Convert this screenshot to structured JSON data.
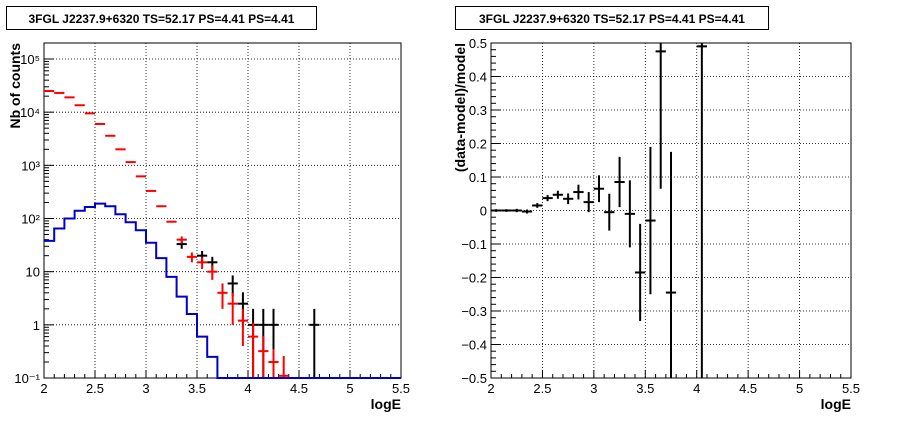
{
  "chart_data": [
    {
      "type": "histogram",
      "title": "3FGL J2237.9+6320 TS=52.17 PS=4.41 PS=4.41",
      "xlabel": "logE",
      "ylabel": "Nb of counts",
      "xlim": [
        2,
        5.5
      ],
      "ylim": [
        0.1,
        200000
      ],
      "yscale": "log",
      "grid": true,
      "xticks": [
        "2",
        "2.5",
        "3",
        "3.5",
        "4",
        "4.5",
        "5",
        "5.5"
      ],
      "yticks": [
        "10⁻¹",
        "1",
        "10",
        "10²",
        "10³",
        "10⁴",
        "10⁵"
      ],
      "bin_width": 0.1,
      "series": [
        {
          "style": "data-points",
          "color": "#000000",
          "points": [
            {
              "x": 3.35,
              "y": 33,
              "err": 6
            },
            {
              "x": 3.55,
              "y": 20,
              "err": 4.5
            },
            {
              "x": 3.65,
              "y": 15,
              "err": 4
            },
            {
              "x": 3.85,
              "y": 6,
              "err": 2.5
            },
            {
              "x": 3.95,
              "y": 2.5,
              "err": 1.6
            },
            {
              "x": 4.05,
              "y": 1,
              "err": 1
            },
            {
              "x": 4.15,
              "y": 1,
              "err": 1
            },
            {
              "x": 4.25,
              "y": 1,
              "err": 1
            },
            {
              "x": 4.65,
              "y": 1,
              "err": 1
            }
          ]
        },
        {
          "style": "model-points",
          "color": "#ff0000",
          "points": [
            {
              "x": 2.05,
              "y": 25000
            },
            {
              "x": 2.15,
              "y": 23000
            },
            {
              "x": 2.25,
              "y": 19000
            },
            {
              "x": 2.35,
              "y": 13500
            },
            {
              "x": 2.45,
              "y": 9500
            },
            {
              "x": 2.55,
              "y": 6000
            },
            {
              "x": 2.65,
              "y": 3600
            },
            {
              "x": 2.75,
              "y": 2000
            },
            {
              "x": 2.85,
              "y": 1150
            },
            {
              "x": 2.95,
              "y": 620
            },
            {
              "x": 3.05,
              "y": 330
            },
            {
              "x": 3.15,
              "y": 170
            },
            {
              "x": 3.25,
              "y": 87
            },
            {
              "x": 3.35,
              "y": 40,
              "err": 6
            },
            {
              "x": 3.45,
              "y": 19,
              "err": 4
            },
            {
              "x": 3.55,
              "y": 15,
              "err": 3.8
            },
            {
              "x": 3.65,
              "y": 10,
              "err": 3
            },
            {
              "x": 3.75,
              "y": 4,
              "err": 2
            },
            {
              "x": 3.85,
              "y": 2.5,
              "err": 1.5
            },
            {
              "x": 3.95,
              "y": 1.2,
              "err": 0.8
            },
            {
              "x": 4.05,
              "y": 0.6,
              "err": 0.5
            },
            {
              "x": 4.15,
              "y": 0.32,
              "err": 0.3
            },
            {
              "x": 4.25,
              "y": 0.2,
              "err": 0.15
            },
            {
              "x": 4.35,
              "y": 0.11,
              "err": 0.15
            }
          ]
        },
        {
          "style": "step-line",
          "color": "#0000cc",
          "bins": [
            {
              "x": 2.05,
              "y": 38
            },
            {
              "x": 2.15,
              "y": 65
            },
            {
              "x": 2.25,
              "y": 100
            },
            {
              "x": 2.35,
              "y": 140
            },
            {
              "x": 2.45,
              "y": 165
            },
            {
              "x": 2.55,
              "y": 190
            },
            {
              "x": 2.65,
              "y": 170
            },
            {
              "x": 2.75,
              "y": 120
            },
            {
              "x": 2.85,
              "y": 85
            },
            {
              "x": 2.95,
              "y": 60
            },
            {
              "x": 3.05,
              "y": 35
            },
            {
              "x": 3.15,
              "y": 18
            },
            {
              "x": 3.25,
              "y": 8
            },
            {
              "x": 3.35,
              "y": 3.4
            },
            {
              "x": 3.45,
              "y": 1.6
            },
            {
              "x": 3.55,
              "y": 0.6
            },
            {
              "x": 3.65,
              "y": 0.25
            },
            {
              "x": 3.75,
              "y": 0.1
            },
            {
              "x": 3.85,
              "y": 0.1
            },
            {
              "x": 3.95,
              "y": 0.1
            },
            {
              "x": 4.05,
              "y": 0.1
            },
            {
              "x": 4.15,
              "y": 0.1
            },
            {
              "x": 4.25,
              "y": 0.1
            },
            {
              "x": 4.35,
              "y": 0.1
            },
            {
              "x": 4.45,
              "y": 0.1
            },
            {
              "x": 4.55,
              "y": 0.1
            },
            {
              "x": 4.65,
              "y": 0.1
            },
            {
              "x": 4.75,
              "y": 0.1
            },
            {
              "x": 4.85,
              "y": 0.1
            },
            {
              "x": 4.95,
              "y": 0.1
            },
            {
              "x": 5.05,
              "y": 0.1
            },
            {
              "x": 5.15,
              "y": 0.1
            },
            {
              "x": 5.25,
              "y": 0.1
            },
            {
              "x": 5.35,
              "y": 0.1
            },
            {
              "x": 5.45,
              "y": 0.1
            }
          ]
        }
      ]
    },
    {
      "type": "scatter",
      "title": "3FGL J2237.9+6320 TS=52.17 PS=4.41 PS=4.41",
      "xlabel": "logE",
      "ylabel": "(data-model)/model",
      "xlim": [
        2,
        5.5
      ],
      "ylim": [
        -0.5,
        0.5
      ],
      "grid": true,
      "xticks": [
        "2",
        "2.5",
        "3",
        "3.5",
        "4",
        "4.5",
        "5",
        "5.5"
      ],
      "yticks": [
        "−0.5",
        "−0.4",
        "−0.3",
        "−0.2",
        "−0.1",
        "0",
        "0.1",
        "0.2",
        "0.3",
        "0.4",
        "0.5"
      ],
      "bin_width": 0.1,
      "series": [
        {
          "style": "data-points",
          "color": "#000000",
          "points": [
            {
              "x": 2.05,
              "y": 0.0,
              "err": 0.004
            },
            {
              "x": 2.15,
              "y": 0.0,
              "err": 0.004
            },
            {
              "x": 2.25,
              "y": 0.0,
              "err": 0.005
            },
            {
              "x": 2.35,
              "y": -0.003,
              "err": 0.006
            },
            {
              "x": 2.45,
              "y": 0.015,
              "err": 0.007
            },
            {
              "x": 2.55,
              "y": 0.037,
              "err": 0.009
            },
            {
              "x": 2.65,
              "y": 0.047,
              "err": 0.012
            },
            {
              "x": 2.75,
              "y": 0.035,
              "err": 0.016
            },
            {
              "x": 2.85,
              "y": 0.055,
              "err": 0.022
            },
            {
              "x": 2.95,
              "y": 0.025,
              "err": 0.03
            },
            {
              "x": 3.05,
              "y": 0.065,
              "err": 0.04
            },
            {
              "x": 3.15,
              "y": -0.005,
              "err": 0.055
            },
            {
              "x": 3.25,
              "y": 0.085,
              "err": 0.075
            },
            {
              "x": 3.35,
              "y": -0.01,
              "err": 0.1
            },
            {
              "x": 3.45,
              "y": -0.185,
              "err": 0.145
            },
            {
              "x": 3.55,
              "y": -0.03,
              "err": 0.22
            },
            {
              "x": 3.65,
              "y": 0.475,
              "err": 0.41
            },
            {
              "x": 3.75,
              "y": -0.245,
              "err": 0.42
            },
            {
              "x": 4.05,
              "y": 0.49,
              "err": 1.0
            }
          ]
        }
      ]
    }
  ]
}
